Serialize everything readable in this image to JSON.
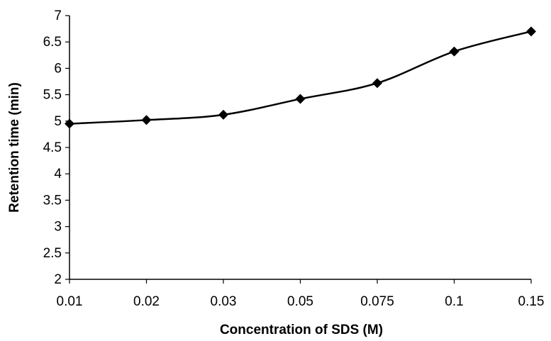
{
  "chart_data": {
    "type": "line",
    "title": "",
    "xlabel": "Concentration of SDS (M)",
    "ylabel": "Retention time (min)",
    "categories": [
      "0.01",
      "0.02",
      "0.03",
      "0.05",
      "0.075",
      "0.1",
      "0.15"
    ],
    "series": [
      {
        "values": [
          4.95,
          5.02,
          5.12,
          5.42,
          5.72,
          6.32,
          6.7
        ],
        "color": "#000000",
        "marker": "diamond",
        "smooth": true
      }
    ],
    "ylim": [
      2,
      7
    ],
    "yticks": [
      "2",
      "2.5",
      "3",
      "3.5",
      "4",
      "4.5",
      "5",
      "5.5",
      "6",
      "6.5",
      "7"
    ],
    "grid": false,
    "legend": "none"
  }
}
